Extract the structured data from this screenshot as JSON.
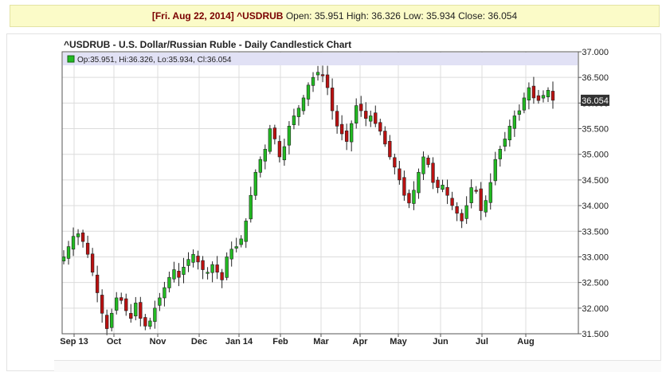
{
  "quote_bar": {
    "date_label": "[Fri. Aug 22, 2014]",
    "symbol": "^USDRUB",
    "open_label": "Open:",
    "open": "35.951",
    "high_label": "High:",
    "high": "36.326",
    "low_label": "Low:",
    "low": "35.934",
    "close_label": "Close:",
    "close": "36.054"
  },
  "chart_data": {
    "type": "candlestick",
    "title": "^USDRUB - U.S. Dollar/Russian Ruble - Daily Candlestick Chart",
    "legend_text": "Op:35.951, Hi:36.326, Lo:35.934, Cl:36.054",
    "last_price_label": "36.054",
    "ylim": [
      31.5,
      37.0
    ],
    "y_ticks": [
      "31.500",
      "32.000",
      "32.500",
      "33.000",
      "33.500",
      "34.000",
      "34.500",
      "35.000",
      "35.500",
      "36.000",
      "36.500",
      "37.000"
    ],
    "x_ticks": [
      "Sep 13",
      "Oct",
      "Nov",
      "Dec",
      "Jan 14",
      "Feb",
      "Mar",
      "Apr",
      "May",
      "Jun",
      "Jul",
      "Aug"
    ],
    "grid": true,
    "up_color": "#22bb22",
    "down_color": "#bb1111",
    "closes": [
      33.0,
      33.2,
      33.4,
      33.45,
      33.3,
      33.05,
      32.7,
      32.3,
      31.9,
      31.6,
      31.9,
      32.2,
      32.15,
      31.95,
      31.8,
      32.1,
      31.8,
      31.65,
      31.75,
      32.0,
      32.2,
      32.4,
      32.6,
      32.75,
      32.6,
      32.8,
      32.95,
      33.05,
      32.9,
      32.75,
      32.7,
      32.85,
      32.7,
      32.55,
      33.0,
      33.15,
      33.2,
      33.35,
      33.7,
      34.2,
      34.65,
      34.9,
      35.1,
      35.5,
      35.3,
      34.95,
      35.15,
      35.55,
      35.75,
      35.9,
      36.1,
      36.35,
      36.5,
      36.6,
      36.55,
      36.3,
      35.85,
      35.55,
      35.4,
      35.25,
      35.6,
      35.95,
      35.85,
      35.7,
      35.75,
      35.6,
      35.45,
      35.2,
      34.95,
      34.75,
      34.5,
      34.2,
      34.05,
      34.3,
      34.65,
      34.95,
      34.8,
      34.45,
      34.35,
      34.4,
      34.2,
      34.0,
      33.85,
      33.7,
      34.0,
      34.35,
      34.3,
      33.9,
      34.1,
      34.45,
      34.9,
      35.1,
      35.3,
      35.55,
      35.75,
      35.85,
      36.1,
      36.3,
      36.1,
      36.05,
      36.15,
      36.25,
      36.054
    ]
  }
}
